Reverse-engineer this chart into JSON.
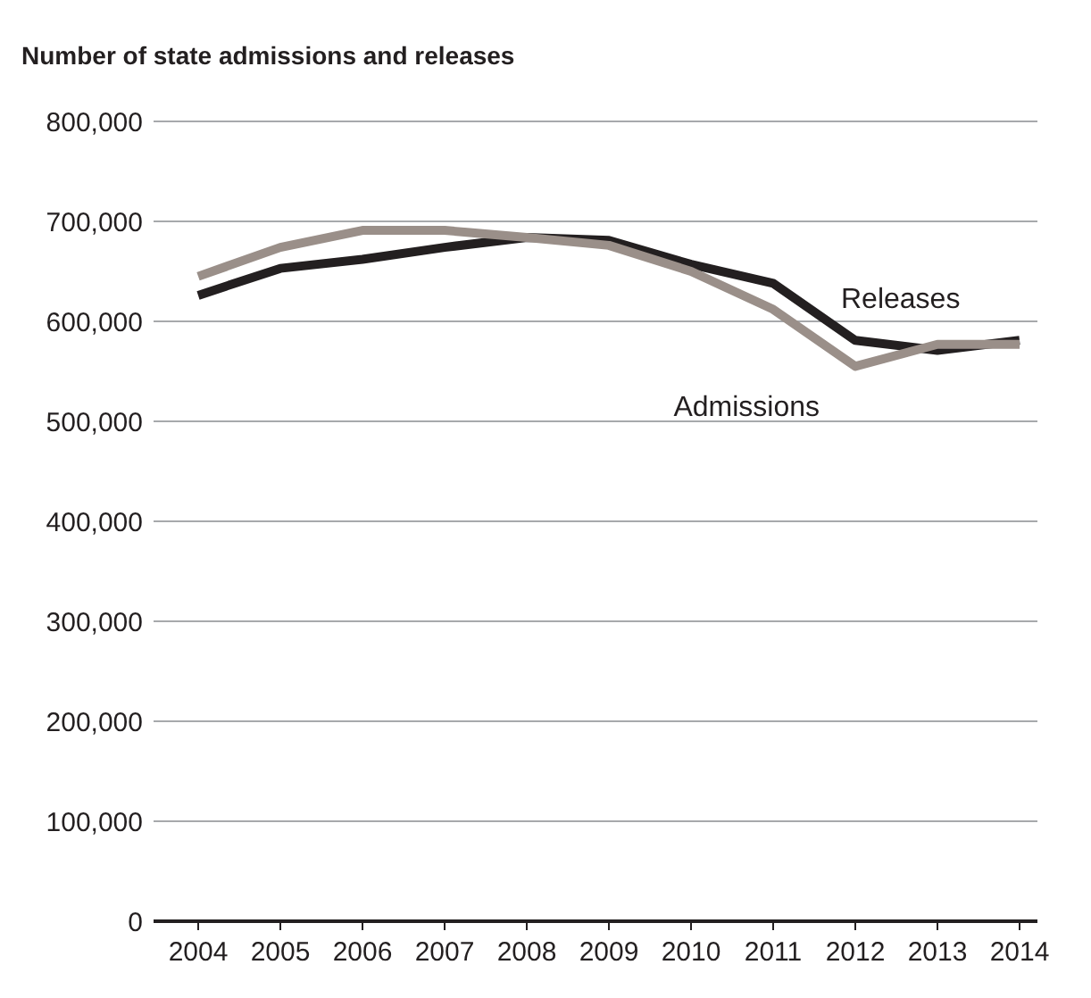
{
  "chart_data": {
    "type": "line",
    "title": "Number of state admissions and releases",
    "categories": [
      "2004",
      "2005",
      "2006",
      "2007",
      "2008",
      "2009",
      "2010",
      "2011",
      "2012",
      "2013",
      "2014"
    ],
    "series": [
      {
        "name": "Releases",
        "color": "#231f20",
        "values": [
          626000,
          653000,
          662000,
          674000,
          684000,
          681000,
          657000,
          638000,
          581000,
          571000,
          581000
        ]
      },
      {
        "name": "Admissions",
        "color": "#9a8f89",
        "values": [
          645000,
          674000,
          691000,
          691000,
          684000,
          676000,
          650000,
          612000,
          555000,
          577000,
          577000
        ]
      }
    ],
    "ylim": [
      0,
      800000
    ],
    "yticks": [
      {
        "value": 0,
        "label": "0"
      },
      {
        "value": 100000,
        "label": "100,000"
      },
      {
        "value": 200000,
        "label": "200,000"
      },
      {
        "value": 300000,
        "label": "300,000"
      },
      {
        "value": 400000,
        "label": "400,000"
      },
      {
        "value": 500000,
        "label": "500,000"
      },
      {
        "value": 600000,
        "label": "600,000"
      },
      {
        "value": 700000,
        "label": "700,000"
      },
      {
        "value": 800000,
        "label": "800,000"
      }
    ],
    "grid": "y",
    "legend": false,
    "marker": "none",
    "line_style": "solid"
  }
}
